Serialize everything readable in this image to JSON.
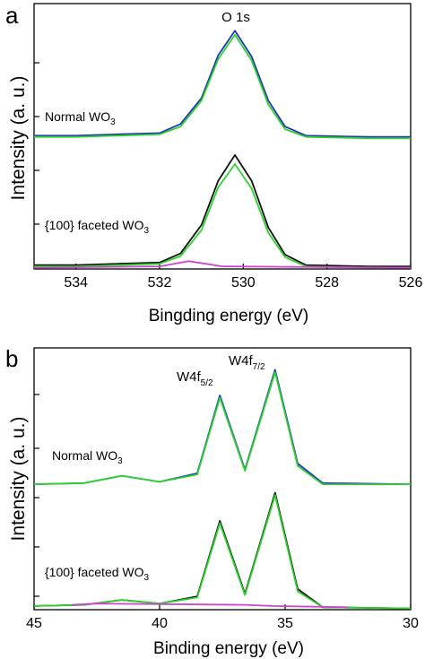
{
  "chart_data": [
    {
      "type": "line",
      "panel_label": "a",
      "xlabel": "Bingding energy (eV)",
      "ylabel": "Intensity (a. u.)",
      "xlim": [
        535,
        526
      ],
      "x_ticks": [
        534,
        532,
        530,
        528,
        526
      ],
      "x_tick_labels": [
        "534",
        "532",
        "530",
        "528",
        "526"
      ],
      "reversed_x": true,
      "peak_label": "O 1s",
      "sample_labels": {
        "top_prefix": "Normal WO",
        "top_sub": "3",
        "bottom_prefix": "{100} faceted WO",
        "bottom_sub": "3"
      },
      "series": [
        {
          "color": "#2233bb",
          "values": [
            {
              "x": 535.0,
              "y": 1.03
            },
            {
              "x": 534.0,
              "y": 1.03
            },
            {
              "x": 533.0,
              "y": 1.04
            },
            {
              "x": 532.0,
              "y": 1.05
            },
            {
              "x": 531.5,
              "y": 1.12
            },
            {
              "x": 531.0,
              "y": 1.32
            },
            {
              "x": 530.6,
              "y": 1.65
            },
            {
              "x": 530.2,
              "y": 1.84
            },
            {
              "x": 529.8,
              "y": 1.64
            },
            {
              "x": 529.4,
              "y": 1.3
            },
            {
              "x": 529.0,
              "y": 1.1
            },
            {
              "x": 528.5,
              "y": 1.03
            },
            {
              "x": 527.0,
              "y": 1.02
            },
            {
              "x": 526.0,
              "y": 1.02
            }
          ]
        },
        {
          "color": "#2bd42b",
          "values": [
            {
              "x": 535.0,
              "y": 1.02
            },
            {
              "x": 534.0,
              "y": 1.02
            },
            {
              "x": 533.0,
              "y": 1.03
            },
            {
              "x": 532.0,
              "y": 1.04
            },
            {
              "x": 531.5,
              "y": 1.1
            },
            {
              "x": 531.0,
              "y": 1.3
            },
            {
              "x": 530.6,
              "y": 1.62
            },
            {
              "x": 530.2,
              "y": 1.81
            },
            {
              "x": 529.8,
              "y": 1.61
            },
            {
              "x": 529.4,
              "y": 1.27
            },
            {
              "x": 529.0,
              "y": 1.08
            },
            {
              "x": 528.5,
              "y": 1.02
            },
            {
              "x": 527.0,
              "y": 1.01
            },
            {
              "x": 526.0,
              "y": 1.01
            }
          ]
        },
        {
          "color": "#111111",
          "values": [
            {
              "x": 535.0,
              "y": 0.03
            },
            {
              "x": 534.0,
              "y": 0.03
            },
            {
              "x": 533.0,
              "y": 0.04
            },
            {
              "x": 532.0,
              "y": 0.05
            },
            {
              "x": 531.5,
              "y": 0.12
            },
            {
              "x": 531.0,
              "y": 0.34
            },
            {
              "x": 530.6,
              "y": 0.68
            },
            {
              "x": 530.2,
              "y": 0.88
            },
            {
              "x": 529.8,
              "y": 0.68
            },
            {
              "x": 529.4,
              "y": 0.32
            },
            {
              "x": 529.0,
              "y": 0.11
            },
            {
              "x": 528.5,
              "y": 0.03
            },
            {
              "x": 527.0,
              "y": 0.02
            },
            {
              "x": 526.0,
              "y": 0.02
            }
          ]
        },
        {
          "color": "#2bd42b",
          "values": [
            {
              "x": 535.0,
              "y": 0.02
            },
            {
              "x": 534.0,
              "y": 0.02
            },
            {
              "x": 533.0,
              "y": 0.03
            },
            {
              "x": 532.0,
              "y": 0.04
            },
            {
              "x": 531.5,
              "y": 0.1
            },
            {
              "x": 531.0,
              "y": 0.3
            },
            {
              "x": 530.6,
              "y": 0.63
            },
            {
              "x": 530.2,
              "y": 0.81
            },
            {
              "x": 529.8,
              "y": 0.62
            },
            {
              "x": 529.4,
              "y": 0.28
            },
            {
              "x": 529.0,
              "y": 0.09
            },
            {
              "x": 528.5,
              "y": 0.02
            },
            {
              "x": 527.0,
              "y": 0.01
            },
            {
              "x": 526.0,
              "y": 0.01
            }
          ]
        },
        {
          "color": "#cc44cc",
          "values": [
            {
              "x": 535.0,
              "y": 0.01
            },
            {
              "x": 532.0,
              "y": 0.02
            },
            {
              "x": 531.3,
              "y": 0.06
            },
            {
              "x": 530.5,
              "y": 0.02
            },
            {
              "x": 526.0,
              "y": 0.01
            }
          ]
        }
      ]
    },
    {
      "type": "line",
      "panel_label": "b",
      "xlabel": "Binding energy (eV)",
      "ylabel": "Intensity (a. u.)",
      "xlim": [
        45,
        30
      ],
      "x_ticks": [
        45,
        40,
        35,
        30
      ],
      "x_tick_labels": [
        "45",
        "40",
        "35",
        "30"
      ],
      "reversed_x": true,
      "peak_labels": {
        "left_main": "W4f",
        "left_sub": "5/2",
        "right_main": "W4f",
        "right_sub": "7/2"
      },
      "sample_labels": {
        "top_prefix": "Normal WO",
        "top_sub": "3",
        "bottom_prefix": "{100} faceted WO",
        "bottom_sub": "3"
      },
      "series": [
        {
          "color": "#2233bb",
          "values": [
            {
              "x": 45.0,
              "y": 1.03
            },
            {
              "x": 43.0,
              "y": 1.04
            },
            {
              "x": 41.5,
              "y": 1.1
            },
            {
              "x": 40.0,
              "y": 1.05
            },
            {
              "x": 38.5,
              "y": 1.12
            },
            {
              "x": 37.6,
              "y": 1.76
            },
            {
              "x": 36.6,
              "y": 1.15
            },
            {
              "x": 35.4,
              "y": 1.97
            },
            {
              "x": 34.5,
              "y": 1.2
            },
            {
              "x": 33.5,
              "y": 1.04
            },
            {
              "x": 30.0,
              "y": 1.03
            }
          ]
        },
        {
          "color": "#2bd42b",
          "values": [
            {
              "x": 45.0,
              "y": 1.03
            },
            {
              "x": 43.0,
              "y": 1.04
            },
            {
              "x": 41.5,
              "y": 1.1
            },
            {
              "x": 40.0,
              "y": 1.05
            },
            {
              "x": 38.5,
              "y": 1.11
            },
            {
              "x": 37.6,
              "y": 1.74
            },
            {
              "x": 36.6,
              "y": 1.14
            },
            {
              "x": 35.4,
              "y": 1.95
            },
            {
              "x": 34.5,
              "y": 1.18
            },
            {
              "x": 33.5,
              "y": 1.03
            },
            {
              "x": 30.0,
              "y": 1.03
            }
          ]
        },
        {
          "color": "#111111",
          "values": [
            {
              "x": 45.0,
              "y": 0.03
            },
            {
              "x": 43.0,
              "y": 0.04
            },
            {
              "x": 41.5,
              "y": 0.08
            },
            {
              "x": 40.0,
              "y": 0.05
            },
            {
              "x": 38.5,
              "y": 0.11
            },
            {
              "x": 37.6,
              "y": 0.73
            },
            {
              "x": 36.6,
              "y": 0.13
            },
            {
              "x": 35.4,
              "y": 0.96
            },
            {
              "x": 34.5,
              "y": 0.17
            },
            {
              "x": 33.5,
              "y": 0.02
            },
            {
              "x": 30.0,
              "y": 0.01
            }
          ]
        },
        {
          "color": "#2bd42b",
          "values": [
            {
              "x": 45.0,
              "y": 0.03
            },
            {
              "x": 43.0,
              "y": 0.04
            },
            {
              "x": 41.5,
              "y": 0.08
            },
            {
              "x": 40.0,
              "y": 0.05
            },
            {
              "x": 38.5,
              "y": 0.1
            },
            {
              "x": 37.6,
              "y": 0.71
            },
            {
              "x": 36.6,
              "y": 0.12
            },
            {
              "x": 35.4,
              "y": 0.94
            },
            {
              "x": 34.5,
              "y": 0.15
            },
            {
              "x": 33.5,
              "y": 0.02
            },
            {
              "x": 30.0,
              "y": 0.01
            }
          ]
        },
        {
          "color": "#cc44cc",
          "values": [
            {
              "x": 43.5,
              "y": 0.04
            },
            {
              "x": 42.5,
              "y": 0.05
            },
            {
              "x": 36.6,
              "y": 0.04
            },
            {
              "x": 35.5,
              "y": 0.03
            },
            {
              "x": 32.5,
              "y": 0.02
            }
          ]
        }
      ]
    }
  ]
}
